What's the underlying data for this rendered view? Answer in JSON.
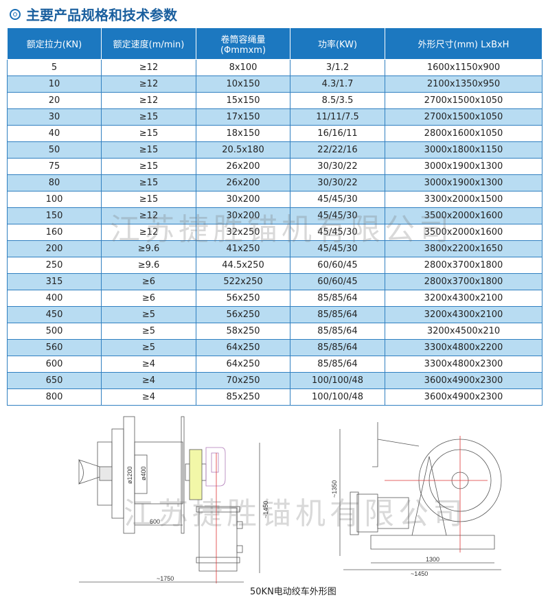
{
  "title": "主要产品规格和技术参数",
  "table": {
    "headers": [
      "额定拉力(KN)",
      "额定速度(m/min)",
      "卷筒容绳量\n(Φmmxm)",
      "功率(KW)",
      "外形尺寸(mm)  LxBxH"
    ],
    "rows": [
      [
        "5",
        "≥12",
        "8x100",
        "3/1.2",
        "1600x1150x900"
      ],
      [
        "10",
        "≥12",
        "10x150",
        "4.3/1.7",
        "2100x1350x950"
      ],
      [
        "20",
        "≥12",
        "15x150",
        "8.5/3.5",
        "2700x1500x1050"
      ],
      [
        "30",
        "≥15",
        "17x150",
        "11/11/7.5",
        "2700x1500x1050"
      ],
      [
        "40",
        "≥15",
        "18x150",
        "16/16/11",
        "2800x1600x1050"
      ],
      [
        "50",
        "≥15",
        "20.5x180",
        "22/22/16",
        "3000x1800x1150"
      ],
      [
        "75",
        "≥15",
        "26x200",
        "30/30/22",
        "3000x1900x1300"
      ],
      [
        "80",
        "≥15",
        "26x200",
        "30/30/22",
        "3000x1900x1300"
      ],
      [
        "100",
        "≥15",
        "30x200",
        "45/45/30",
        "3300x2000x1500"
      ],
      [
        "150",
        "≥12",
        "30x200",
        "45/45/30",
        "3500x2000x1600"
      ],
      [
        "160",
        "≥12",
        "32x250",
        "45/45/30",
        "3500x2000x1600"
      ],
      [
        "200",
        "≥9.6",
        "41x250",
        "45/45/30",
        "3800x2200x1650"
      ],
      [
        "250",
        "≥9.6",
        "44.5x250",
        "60/60/45",
        "2800x3700x1800"
      ],
      [
        "315",
        "≥6",
        "522x250",
        "60/60/45",
        "2800x3700x1800"
      ],
      [
        "400",
        "≥6",
        "56x250",
        "85/85/64",
        "3200x4300x2100"
      ],
      [
        "450",
        "≥5",
        "56x250",
        "85/85/64",
        "3200x4300x2100"
      ],
      [
        "500",
        "≥5",
        "58x250",
        "85/85/64",
        "3200x4500x210"
      ],
      [
        "560",
        "≥5",
        "64x250",
        "85/85/64",
        "3300x4800x2200"
      ],
      [
        "600",
        "≥4",
        "64x250",
        "85/85/64",
        "3300x4800x2300"
      ],
      [
        "650",
        "≥4",
        "70x250",
        "100/100/48",
        "3600x4900x2300"
      ],
      [
        "800",
        "≥4",
        "85x250",
        "100/100/48",
        "3600x4900x2300"
      ]
    ]
  },
  "watermark": "江苏捷胜锚机有限公司",
  "drawing": {
    "front_labels": {
      "drum_dia": "ø1200",
      "core_dia": "ø400",
      "width": "600",
      "height": "~1450",
      "length": "~1750"
    },
    "side_labels": {
      "height": "~1350",
      "base": "1300",
      "length": "~1450"
    },
    "caption": "50KN电动绞车外形图"
  },
  "colors": {
    "header_bg": "#1c78c0",
    "alt_row": "#b8dcf2",
    "title": "#1a5f9e"
  }
}
